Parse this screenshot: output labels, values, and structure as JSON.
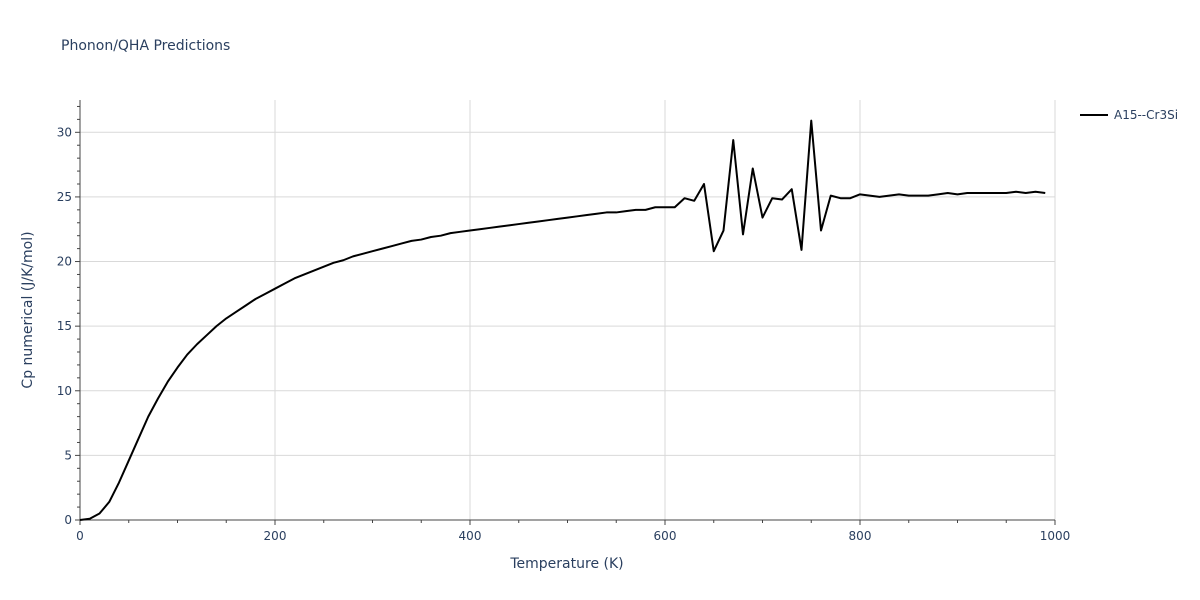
{
  "chart_data": {
    "type": "line",
    "title": "Phonon/QHA Predictions",
    "xlabel": "Temperature (K)",
    "ylabel": "Cp numerical (J/K/mol)",
    "xlim": [
      0,
      1000
    ],
    "ylim": [
      0,
      32.5
    ],
    "x_ticks": [
      0,
      200,
      400,
      600,
      800,
      1000
    ],
    "y_ticks": [
      0,
      5,
      10,
      15,
      20,
      25,
      30
    ],
    "grid": true,
    "legend_position": "top-right",
    "series": [
      {
        "name": "A15--Cr3Si",
        "color": "#000000",
        "x": [
          0,
          10,
          20,
          30,
          40,
          50,
          60,
          70,
          80,
          90,
          100,
          110,
          120,
          130,
          140,
          150,
          160,
          170,
          180,
          190,
          200,
          210,
          220,
          230,
          240,
          250,
          260,
          270,
          280,
          290,
          300,
          310,
          320,
          330,
          340,
          350,
          360,
          370,
          380,
          390,
          400,
          410,
          420,
          430,
          440,
          450,
          460,
          470,
          480,
          490,
          500,
          510,
          520,
          530,
          540,
          550,
          560,
          570,
          580,
          590,
          600,
          610,
          620,
          630,
          640,
          650,
          660,
          670,
          680,
          690,
          700,
          710,
          720,
          730,
          740,
          750,
          760,
          770,
          780,
          790,
          800,
          810,
          820,
          830,
          840,
          850,
          860,
          870,
          880,
          890,
          900,
          910,
          920,
          930,
          940,
          950,
          960,
          970,
          980,
          990
        ],
        "y": [
          0,
          0.1,
          0.5,
          1.4,
          2.9,
          4.6,
          6.3,
          8.0,
          9.4,
          10.7,
          11.8,
          12.8,
          13.6,
          14.3,
          15.0,
          15.6,
          16.1,
          16.6,
          17.1,
          17.5,
          17.9,
          18.3,
          18.7,
          19.0,
          19.3,
          19.6,
          19.9,
          20.1,
          20.4,
          20.6,
          20.8,
          21.0,
          21.2,
          21.4,
          21.6,
          21.7,
          21.9,
          22.0,
          22.2,
          22.3,
          22.4,
          22.5,
          22.6,
          22.7,
          22.8,
          22.9,
          23.0,
          23.1,
          23.2,
          23.3,
          23.4,
          23.5,
          23.6,
          23.7,
          23.8,
          23.8,
          23.9,
          24.0,
          24.0,
          24.2,
          24.2,
          24.2,
          24.9,
          24.7,
          26.0,
          20.8,
          22.4,
          29.4,
          22.1,
          27.2,
          23.4,
          24.9,
          24.8,
          25.6,
          20.9,
          30.9,
          22.4,
          25.1,
          24.9,
          24.9,
          25.2,
          25.1,
          25.0,
          25.1,
          25.2,
          25.1,
          25.1,
          25.1,
          25.2,
          25.3,
          25.2,
          25.3,
          25.3,
          25.3,
          25.3,
          25.3,
          25.4,
          25.3,
          25.4,
          25.3
        ],
        "_x_extent": [
          0,
          990
        ]
      }
    ]
  }
}
